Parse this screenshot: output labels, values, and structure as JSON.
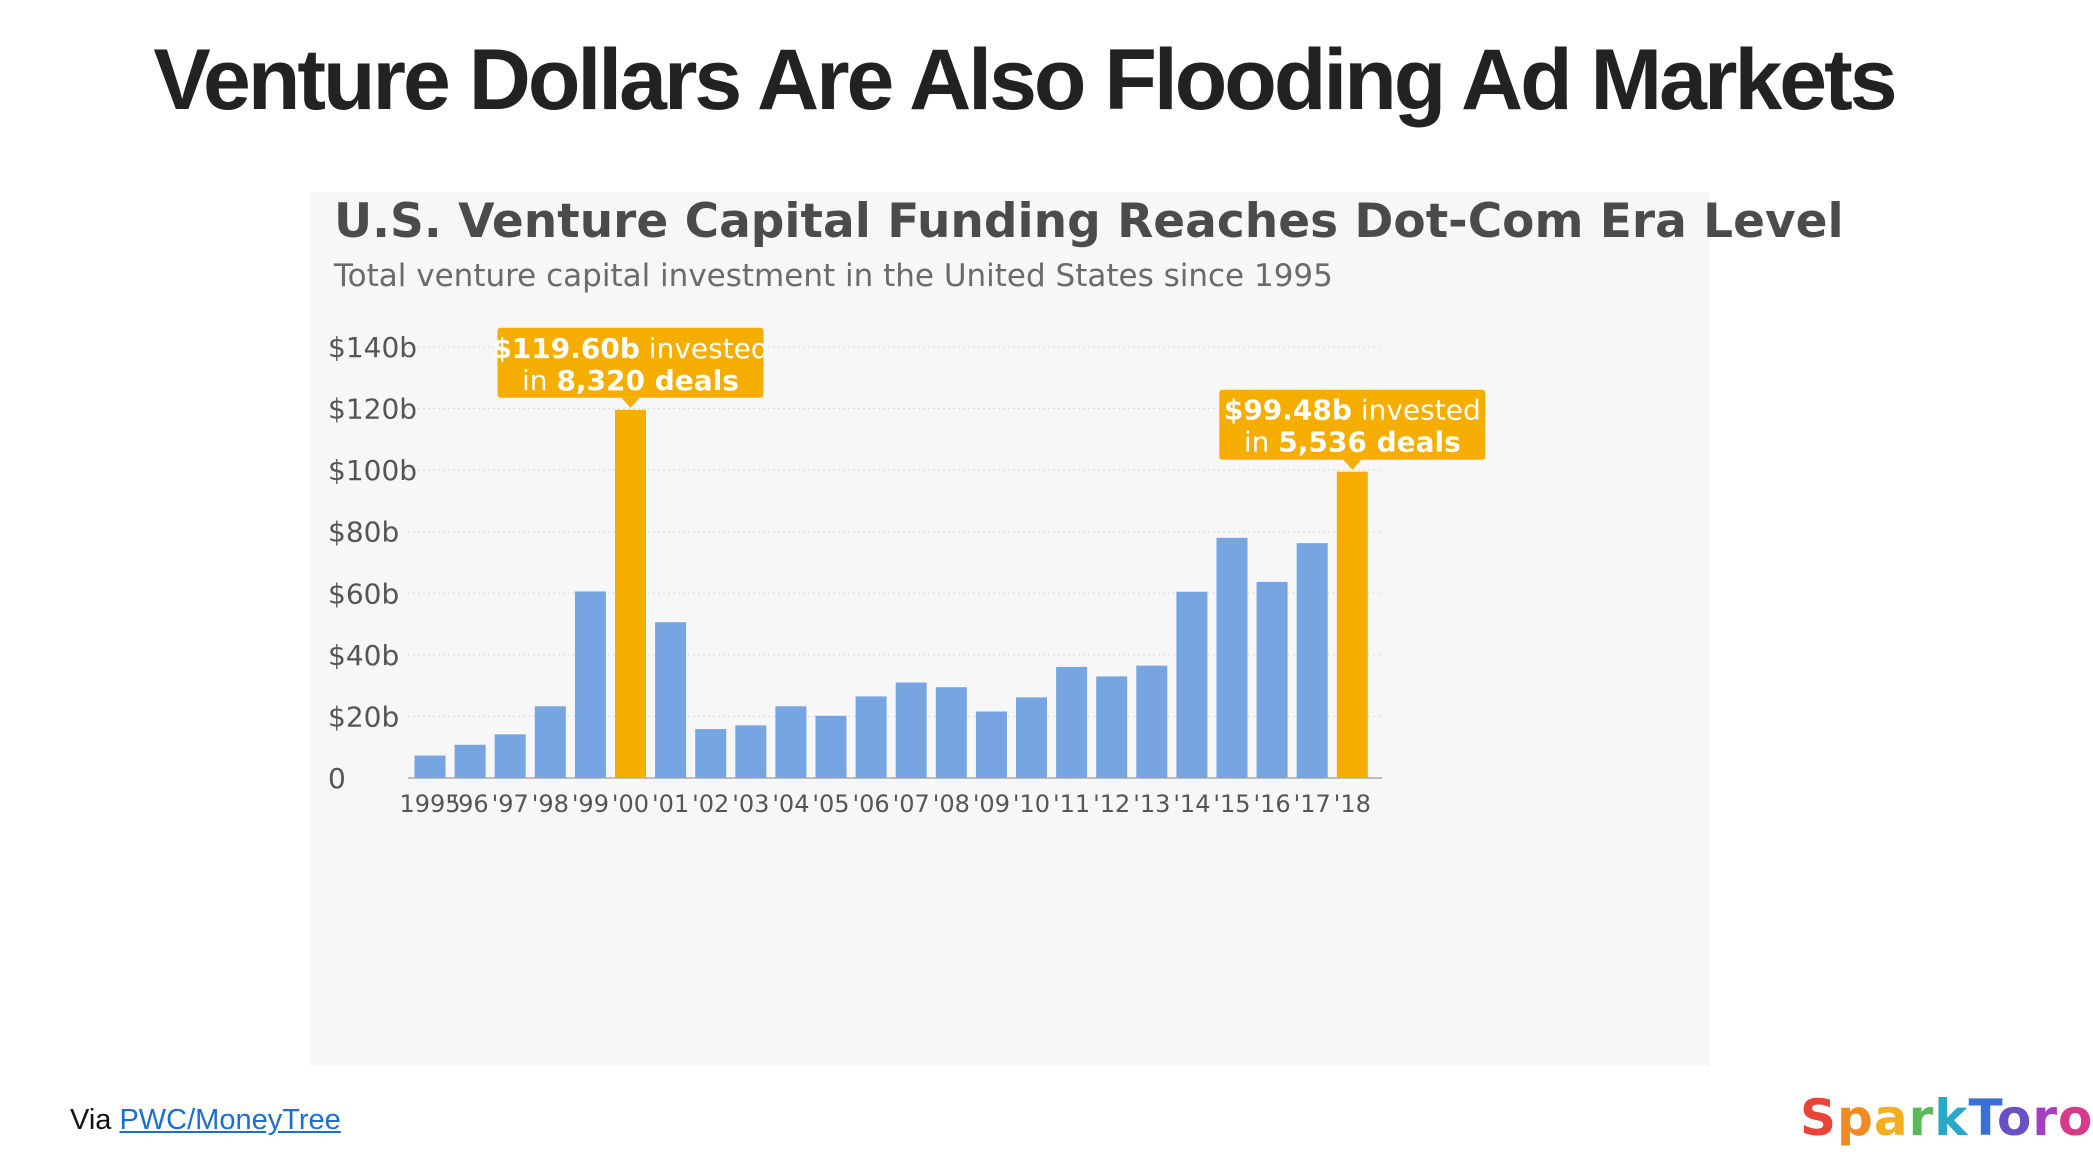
{
  "slide": {
    "title": "Venture Dollars Are Also Flooding Ad Markets",
    "via_prefix": "Via ",
    "via_link": "PWC/MoneyTree",
    "logo": "SparkToro"
  },
  "colors": {
    "bar": "#76a5e1",
    "highlight": "#f5ad00",
    "grid": "#d8d8d8",
    "axis": "#bdbdbd"
  },
  "chart_data": {
    "type": "bar",
    "title": "U.S. Venture Capital Funding Reaches Dot-Com Era Level",
    "subtitle": "Total venture capital investment in the United States since 1995",
    "xlabel": "",
    "ylabel": "",
    "ylim": [
      0,
      140
    ],
    "grid": true,
    "y_ticks": [
      0,
      20,
      40,
      60,
      80,
      100,
      120,
      140
    ],
    "y_tick_labels": [
      "0",
      "$20b",
      "$40b",
      "$60b",
      "$80b",
      "$100b",
      "$120b",
      "$140b"
    ],
    "categories": [
      "1995",
      "'96",
      "'97",
      "'98",
      "'99",
      "'00",
      "'01",
      "'02",
      "'03",
      "'04",
      "'05",
      "'06",
      "'07",
      "'08",
      "'09",
      "'10",
      "'11",
      "'12",
      "'13",
      "'14",
      "'15",
      "'16",
      "'17",
      "'18"
    ],
    "values": [
      7.3,
      10.8,
      14.2,
      23.3,
      60.6,
      119.6,
      50.6,
      15.9,
      17.1,
      23.3,
      20.2,
      26.5,
      31.0,
      29.5,
      21.6,
      26.2,
      36.1,
      33.0,
      36.5,
      60.5,
      78.0,
      63.7,
      76.3,
      99.48
    ],
    "highlighted": [
      "'00",
      "'18"
    ],
    "annotations": [
      {
        "category": "'00",
        "line1": "$119.60b invested",
        "line2": "in 8,320 deals"
      },
      {
        "category": "'18",
        "line1": "$99.48b invested",
        "line2": "in 5,536 deals"
      }
    ]
  }
}
